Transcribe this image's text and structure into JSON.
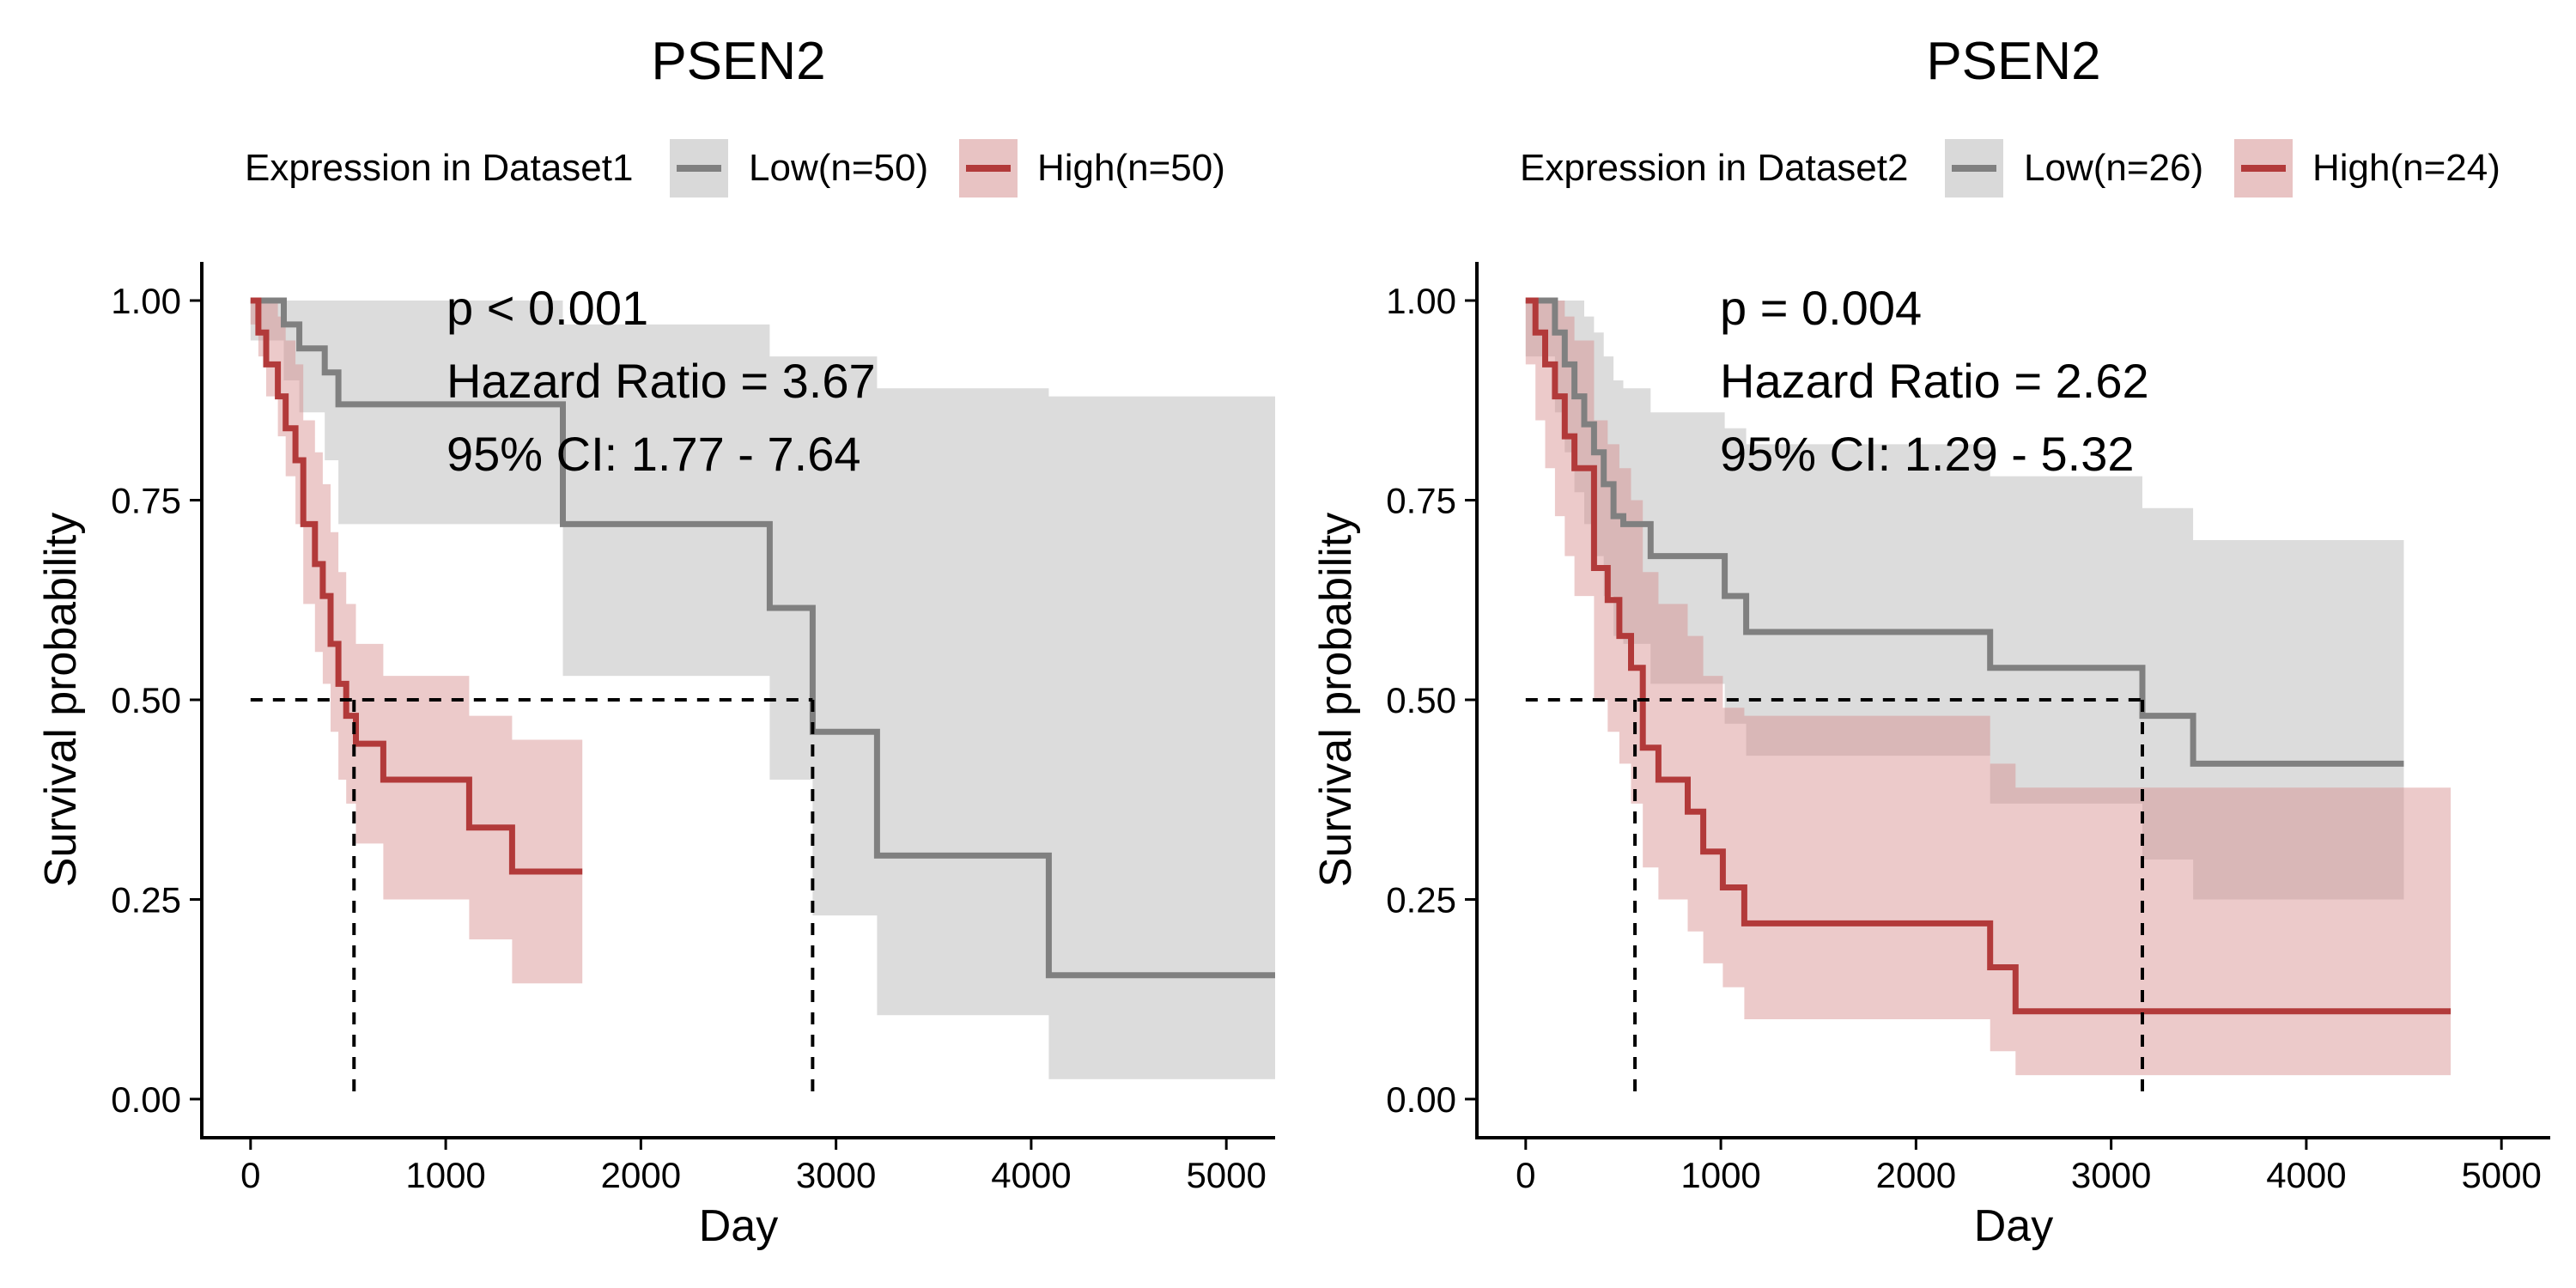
{
  "colors": {
    "low": "#808080",
    "high": "#B23A3A",
    "low_band": "#BFBFBF",
    "high_band": "#D48A8A"
  },
  "chart_data": [
    {
      "type": "line",
      "title": "PSEN2",
      "legend_title": "Expression in Dataset1",
      "legend_placement": "top",
      "xlabel": "Day",
      "ylabel": "Survival probability",
      "xlim": [
        -250,
        5250
      ],
      "ylim": [
        0,
        1
      ],
      "xticks": [
        0,
        1000,
        2000,
        3000,
        4000,
        5000
      ],
      "yticks": [
        0,
        0.25,
        0.5,
        0.75,
        1.0
      ],
      "ytick_labels": [
        "0.00",
        "0.25",
        "0.50",
        "0.75",
        "1.00"
      ],
      "grid": false,
      "annotations": [
        "p < 0.001",
        "Hazard Ratio = 3.67",
        "95% CI: 1.77 - 7.64"
      ],
      "median_line": {
        "y": 0.5,
        "x_values": [
          530,
          2880
        ]
      },
      "series": [
        {
          "name": "Low(n=50)",
          "color_key": "low",
          "x": [
            0,
            170,
            250,
            380,
            450,
            1600,
            2660,
            2880,
            3210,
            4090,
            5250
          ],
          "y": [
            1.0,
            0.97,
            0.94,
            0.91,
            0.87,
            0.72,
            0.615,
            0.46,
            0.305,
            0.155,
            0.155
          ],
          "ci_upper": [
            1.0,
            1.0,
            1.0,
            1.0,
            1.0,
            0.97,
            0.93,
            0.93,
            0.89,
            0.88,
            0.88
          ],
          "ci_lower": [
            0.95,
            0.9,
            0.86,
            0.8,
            0.72,
            0.53,
            0.4,
            0.23,
            0.105,
            0.025,
            0.025
          ]
        },
        {
          "name": "High(n=50)",
          "color_key": "high",
          "x": [
            0,
            40,
            80,
            140,
            180,
            230,
            270,
            330,
            370,
            410,
            450,
            490,
            540,
            680,
            1120,
            1340,
            1700
          ],
          "y": [
            1.0,
            0.96,
            0.92,
            0.88,
            0.84,
            0.8,
            0.72,
            0.67,
            0.63,
            0.57,
            0.52,
            0.48,
            0.445,
            0.4,
            0.34,
            0.285,
            0.285
          ],
          "ci_upper": [
            1.0,
            1.0,
            1.0,
            0.98,
            0.95,
            0.92,
            0.85,
            0.81,
            0.77,
            0.71,
            0.66,
            0.62,
            0.57,
            0.53,
            0.48,
            0.45,
            0.45
          ],
          "ci_lower": [
            0.97,
            0.93,
            0.88,
            0.83,
            0.78,
            0.72,
            0.62,
            0.56,
            0.52,
            0.46,
            0.4,
            0.37,
            0.32,
            0.25,
            0.2,
            0.145,
            0.145
          ]
        }
      ]
    },
    {
      "type": "line",
      "title": "PSEN2",
      "legend_title": "Expression in Dataset2",
      "legend_placement": "top",
      "xlabel": "Day",
      "ylabel": "Survival probability",
      "xlim": [
        -250,
        5250
      ],
      "ylim": [
        0,
        1
      ],
      "xticks": [
        0,
        1000,
        2000,
        3000,
        4000,
        5000
      ],
      "yticks": [
        0,
        0.25,
        0.5,
        0.75,
        1.0
      ],
      "ytick_labels": [
        "0.00",
        "0.25",
        "0.50",
        "0.75",
        "1.00"
      ],
      "grid": false,
      "annotations": [
        "p = 0.004",
        "Hazard Ratio = 2.62",
        "95% CI: 1.29 - 5.32"
      ],
      "median_line": {
        "y": 0.5,
        "x_values": [
          560,
          3160
        ]
      },
      "series": [
        {
          "name": "Low(n=26)",
          "color_key": "low",
          "x": [
            0,
            150,
            200,
            250,
            300,
            350,
            400,
            450,
            500,
            640,
            1020,
            1130,
            2380,
            3160,
            3420,
            4500
          ],
          "y": [
            1.0,
            0.96,
            0.92,
            0.88,
            0.845,
            0.81,
            0.77,
            0.73,
            0.72,
            0.68,
            0.63,
            0.585,
            0.54,
            0.48,
            0.42,
            0.42
          ],
          "ci_upper": [
            1.0,
            1.0,
            1.0,
            1.0,
            0.98,
            0.96,
            0.93,
            0.9,
            0.89,
            0.86,
            0.84,
            0.82,
            0.78,
            0.74,
            0.7,
            0.7
          ],
          "ci_lower": [
            0.93,
            0.86,
            0.81,
            0.76,
            0.72,
            0.68,
            0.63,
            0.58,
            0.57,
            0.52,
            0.47,
            0.43,
            0.37,
            0.3,
            0.25,
            0.25
          ]
        },
        {
          "name": "High(n=24)",
          "color_key": "high",
          "x": [
            0,
            50,
            100,
            150,
            200,
            250,
            350,
            420,
            480,
            540,
            600,
            680,
            830,
            910,
            1010,
            1120,
            2380,
            2510,
            4740
          ],
          "y": [
            1.0,
            0.96,
            0.92,
            0.88,
            0.83,
            0.79,
            0.665,
            0.625,
            0.58,
            0.54,
            0.44,
            0.4,
            0.36,
            0.31,
            0.265,
            0.22,
            0.165,
            0.11,
            0.11
          ],
          "ci_upper": [
            1.0,
            1.0,
            1.0,
            1.0,
            0.98,
            0.95,
            0.85,
            0.82,
            0.79,
            0.75,
            0.66,
            0.62,
            0.58,
            0.53,
            0.49,
            0.48,
            0.42,
            0.39,
            0.39
          ],
          "ci_lower": [
            0.92,
            0.85,
            0.79,
            0.73,
            0.68,
            0.63,
            0.5,
            0.46,
            0.42,
            0.37,
            0.29,
            0.25,
            0.21,
            0.17,
            0.14,
            0.1,
            0.06,
            0.03,
            0.03
          ]
        }
      ]
    }
  ]
}
